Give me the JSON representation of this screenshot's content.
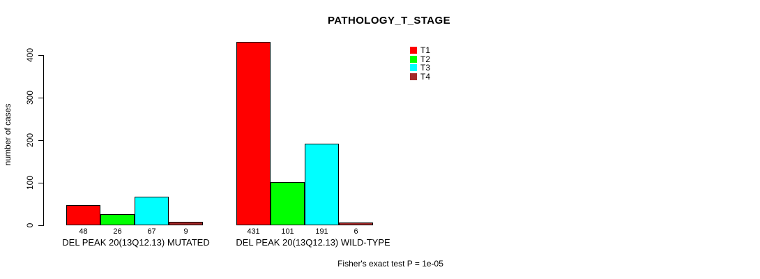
{
  "chart_data": {
    "type": "bar",
    "title": "PATHOLOGY_T_STAGE",
    "ylabel": "number of cases",
    "xlabel": "",
    "ylim": [
      0,
      400
    ],
    "yticks": [
      0,
      100,
      200,
      300,
      400
    ],
    "grid": false,
    "legend_position": "top-right",
    "categories": [
      "T1",
      "T2",
      "T3",
      "T4"
    ],
    "colors": [
      "#ff0000",
      "#00ff00",
      "#00ffff",
      "#a52a2a"
    ],
    "bar_border_color": "#000000",
    "groups": [
      {
        "label": "DEL PEAK 20(13Q12.13) MUTATED",
        "values": [
          48,
          26,
          67,
          9
        ]
      },
      {
        "label": "DEL PEAK 20(13Q12.13) WILD-TYPE",
        "values": [
          431,
          101,
          191,
          6
        ]
      }
    ],
    "bar_value_labels": [
      [
        "48",
        "26",
        "67",
        "9"
      ],
      [
        "431",
        "101",
        "191",
        "6"
      ]
    ],
    "annotation": "Fisher's exact test P = 1e-05"
  }
}
